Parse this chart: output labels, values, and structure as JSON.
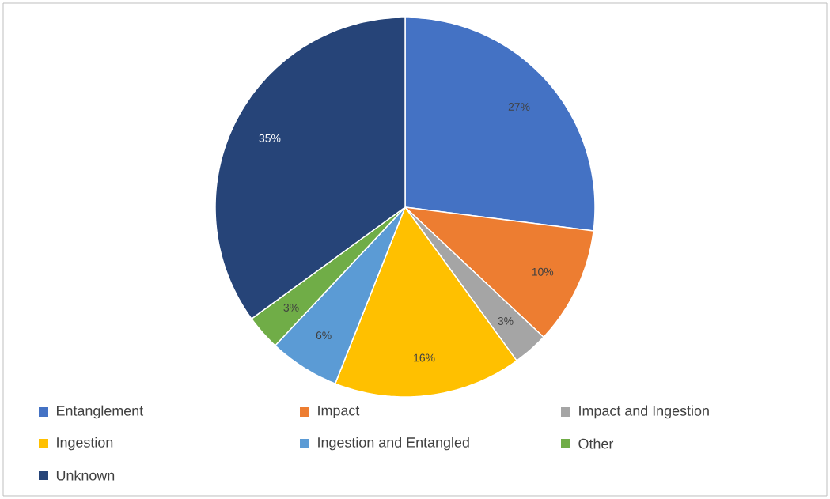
{
  "chart_data": {
    "type": "pie",
    "categories": [
      "Entanglement",
      "Impact",
      "Impact and Ingestion",
      "Ingestion",
      "Ingestion and Entangled",
      "Other",
      "Unknown"
    ],
    "values": [
      27,
      10,
      3,
      16,
      6,
      3,
      35
    ],
    "colors": [
      "#4472c4",
      "#ed7d31",
      "#a5a5a5",
      "#ffc000",
      "#5b9bd5",
      "#70ad47",
      "#264478"
    ],
    "value_labels": [
      "27%",
      "10%",
      "3%",
      "16%",
      "6%",
      "3%",
      "35%"
    ],
    "legend": "bottom"
  }
}
